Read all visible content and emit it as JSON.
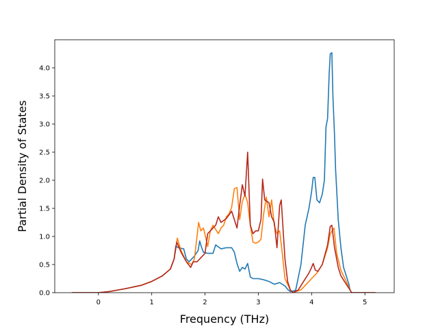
{
  "chart_data": {
    "type": "line",
    "title": "",
    "xlabel": "Frequency (THz)",
    "ylabel": "Partial Density of States",
    "xlim": [
      -0.82,
      5.55
    ],
    "ylim": [
      0.0,
      4.5
    ],
    "xticks": [
      0,
      1,
      2,
      3,
      4,
      5
    ],
    "xtick_labels": [
      "0",
      "1",
      "2",
      "3",
      "4",
      "5"
    ],
    "yticks": [
      0.0,
      0.5,
      1.0,
      1.5,
      2.0,
      2.5,
      3.0,
      3.5,
      4.0
    ],
    "ytick_labels": [
      "0.0",
      "0.5",
      "1.0",
      "1.5",
      "2.0",
      "2.5",
      "3.0",
      "3.5",
      "4.0"
    ],
    "grid": false,
    "legend": "none",
    "series": [
      {
        "color": "#1f77b4",
        "points": [
          [
            -0.5,
            0
          ],
          [
            0,
            0
          ],
          [
            0.2,
            0.02
          ],
          [
            0.5,
            0.07
          ],
          [
            0.8,
            0.13
          ],
          [
            1.0,
            0.2
          ],
          [
            1.2,
            0.3
          ],
          [
            1.35,
            0.42
          ],
          [
            1.42,
            0.6
          ],
          [
            1.45,
            0.83
          ],
          [
            1.5,
            0.8
          ],
          [
            1.6,
            0.78
          ],
          [
            1.65,
            0.6
          ],
          [
            1.7,
            0.55
          ],
          [
            1.75,
            0.6
          ],
          [
            1.8,
            0.65
          ],
          [
            1.87,
            0.75
          ],
          [
            1.9,
            0.92
          ],
          [
            1.93,
            0.82
          ],
          [
            1.97,
            0.72
          ],
          [
            2.05,
            0.7
          ],
          [
            2.15,
            0.7
          ],
          [
            2.2,
            0.85
          ],
          [
            2.3,
            0.78
          ],
          [
            2.4,
            0.8
          ],
          [
            2.5,
            0.8
          ],
          [
            2.55,
            0.72
          ],
          [
            2.6,
            0.52
          ],
          [
            2.65,
            0.38
          ],
          [
            2.7,
            0.45
          ],
          [
            2.75,
            0.42
          ],
          [
            2.8,
            0.52
          ],
          [
            2.85,
            0.28
          ],
          [
            2.9,
            0.25
          ],
          [
            3.0,
            0.25
          ],
          [
            3.1,
            0.23
          ],
          [
            3.2,
            0.2
          ],
          [
            3.3,
            0.15
          ],
          [
            3.4,
            0.18
          ],
          [
            3.5,
            0.12
          ],
          [
            3.55,
            0.06
          ],
          [
            3.6,
            0.02
          ],
          [
            3.7,
            0.04
          ],
          [
            3.8,
            0.5
          ],
          [
            3.88,
            1.2
          ],
          [
            3.95,
            1.5
          ],
          [
            4.0,
            1.8
          ],
          [
            4.03,
            2.05
          ],
          [
            4.06,
            2.05
          ],
          [
            4.1,
            1.65
          ],
          [
            4.15,
            1.6
          ],
          [
            4.2,
            1.75
          ],
          [
            4.24,
            2.0
          ],
          [
            4.27,
            2.95
          ],
          [
            4.3,
            3.1
          ],
          [
            4.33,
            3.9
          ],
          [
            4.35,
            4.25
          ],
          [
            4.38,
            4.27
          ],
          [
            4.4,
            3.5
          ],
          [
            4.43,
            2.8
          ],
          [
            4.45,
            2.2
          ],
          [
            4.5,
            1.3
          ],
          [
            4.55,
            0.8
          ],
          [
            4.6,
            0.45
          ],
          [
            4.65,
            0.3
          ],
          [
            4.7,
            0.15
          ],
          [
            4.72,
            0.05
          ],
          [
            4.75,
            0
          ],
          [
            5.2,
            0
          ]
        ]
      },
      {
        "color": "#ff7f0e",
        "points": [
          [
            -0.5,
            0
          ],
          [
            0,
            0
          ],
          [
            0.2,
            0.02
          ],
          [
            0.5,
            0.07
          ],
          [
            0.8,
            0.13
          ],
          [
            1.0,
            0.2
          ],
          [
            1.2,
            0.3
          ],
          [
            1.35,
            0.42
          ],
          [
            1.42,
            0.6
          ],
          [
            1.48,
            0.97
          ],
          [
            1.55,
            0.75
          ],
          [
            1.65,
            0.55
          ],
          [
            1.75,
            0.5
          ],
          [
            1.8,
            0.6
          ],
          [
            1.85,
            1.0
          ],
          [
            1.88,
            1.25
          ],
          [
            1.92,
            1.1
          ],
          [
            1.97,
            1.15
          ],
          [
            2.02,
            0.95
          ],
          [
            2.05,
            0.82
          ],
          [
            2.1,
            1.1
          ],
          [
            2.15,
            1.2
          ],
          [
            2.25,
            1.05
          ],
          [
            2.3,
            1.15
          ],
          [
            2.35,
            1.2
          ],
          [
            2.4,
            1.35
          ],
          [
            2.45,
            1.4
          ],
          [
            2.5,
            1.52
          ],
          [
            2.55,
            1.85
          ],
          [
            2.6,
            1.87
          ],
          [
            2.65,
            1.3
          ],
          [
            2.7,
            1.62
          ],
          [
            2.75,
            1.75
          ],
          [
            2.8,
            1.6
          ],
          [
            2.85,
            1.2
          ],
          [
            2.9,
            0.9
          ],
          [
            2.95,
            0.88
          ],
          [
            3.0,
            0.9
          ],
          [
            3.05,
            0.95
          ],
          [
            3.1,
            1.4
          ],
          [
            3.15,
            1.7
          ],
          [
            3.2,
            1.35
          ],
          [
            3.25,
            1.65
          ],
          [
            3.3,
            1.2
          ],
          [
            3.35,
            1.05
          ],
          [
            3.4,
            1.1
          ],
          [
            3.45,
            0.7
          ],
          [
            3.5,
            0.25
          ],
          [
            3.6,
            0.05
          ],
          [
            3.65,
            0
          ],
          [
            3.8,
            0.05
          ],
          [
            3.9,
            0.15
          ],
          [
            4.0,
            0.25
          ],
          [
            4.1,
            0.35
          ],
          [
            4.2,
            0.5
          ],
          [
            4.3,
            0.8
          ],
          [
            4.35,
            1.05
          ],
          [
            4.42,
            1.15
          ],
          [
            4.47,
            0.7
          ],
          [
            4.55,
            0.4
          ],
          [
            4.65,
            0.2
          ],
          [
            4.72,
            0.05
          ],
          [
            4.75,
            0
          ],
          [
            5.2,
            0
          ]
        ]
      },
      {
        "color": "#b5271a",
        "points": [
          [
            -0.5,
            0
          ],
          [
            0,
            0
          ],
          [
            0.2,
            0.02
          ],
          [
            0.5,
            0.07
          ],
          [
            0.8,
            0.13
          ],
          [
            1.0,
            0.2
          ],
          [
            1.2,
            0.3
          ],
          [
            1.35,
            0.42
          ],
          [
            1.42,
            0.6
          ],
          [
            1.47,
            0.9
          ],
          [
            1.55,
            0.72
          ],
          [
            1.65,
            0.55
          ],
          [
            1.73,
            0.45
          ],
          [
            1.78,
            0.55
          ],
          [
            1.85,
            0.55
          ],
          [
            1.95,
            0.65
          ],
          [
            2.0,
            0.7
          ],
          [
            2.05,
            1.05
          ],
          [
            2.1,
            1.1
          ],
          [
            2.2,
            1.2
          ],
          [
            2.25,
            1.35
          ],
          [
            2.3,
            1.25
          ],
          [
            2.4,
            1.32
          ],
          [
            2.5,
            1.45
          ],
          [
            2.55,
            1.3
          ],
          [
            2.6,
            1.15
          ],
          [
            2.65,
            1.55
          ],
          [
            2.7,
            1.92
          ],
          [
            2.75,
            1.72
          ],
          [
            2.8,
            2.5
          ],
          [
            2.85,
            1.2
          ],
          [
            2.9,
            1.05
          ],
          [
            2.95,
            1.1
          ],
          [
            3.0,
            1.1
          ],
          [
            3.05,
            1.3
          ],
          [
            3.08,
            2.02
          ],
          [
            3.12,
            1.65
          ],
          [
            3.2,
            1.6
          ],
          [
            3.25,
            1.35
          ],
          [
            3.3,
            1.25
          ],
          [
            3.35,
            0.8
          ],
          [
            3.4,
            1.55
          ],
          [
            3.43,
            1.65
          ],
          [
            3.5,
            0.6
          ],
          [
            3.55,
            0.2
          ],
          [
            3.6,
            0.05
          ],
          [
            3.65,
            0
          ],
          [
            3.75,
            0.05
          ],
          [
            3.85,
            0.2
          ],
          [
            3.95,
            0.35
          ],
          [
            4.0,
            0.45
          ],
          [
            4.03,
            0.52
          ],
          [
            4.07,
            0.4
          ],
          [
            4.12,
            0.38
          ],
          [
            4.2,
            0.5
          ],
          [
            4.3,
            0.85
          ],
          [
            4.35,
            1.18
          ],
          [
            4.38,
            1.2
          ],
          [
            4.43,
            0.8
          ],
          [
            4.5,
            0.45
          ],
          [
            4.55,
            0.3
          ],
          [
            4.65,
            0.15
          ],
          [
            4.72,
            0.05
          ],
          [
            4.75,
            0
          ],
          [
            5.2,
            0
          ]
        ]
      }
    ]
  }
}
